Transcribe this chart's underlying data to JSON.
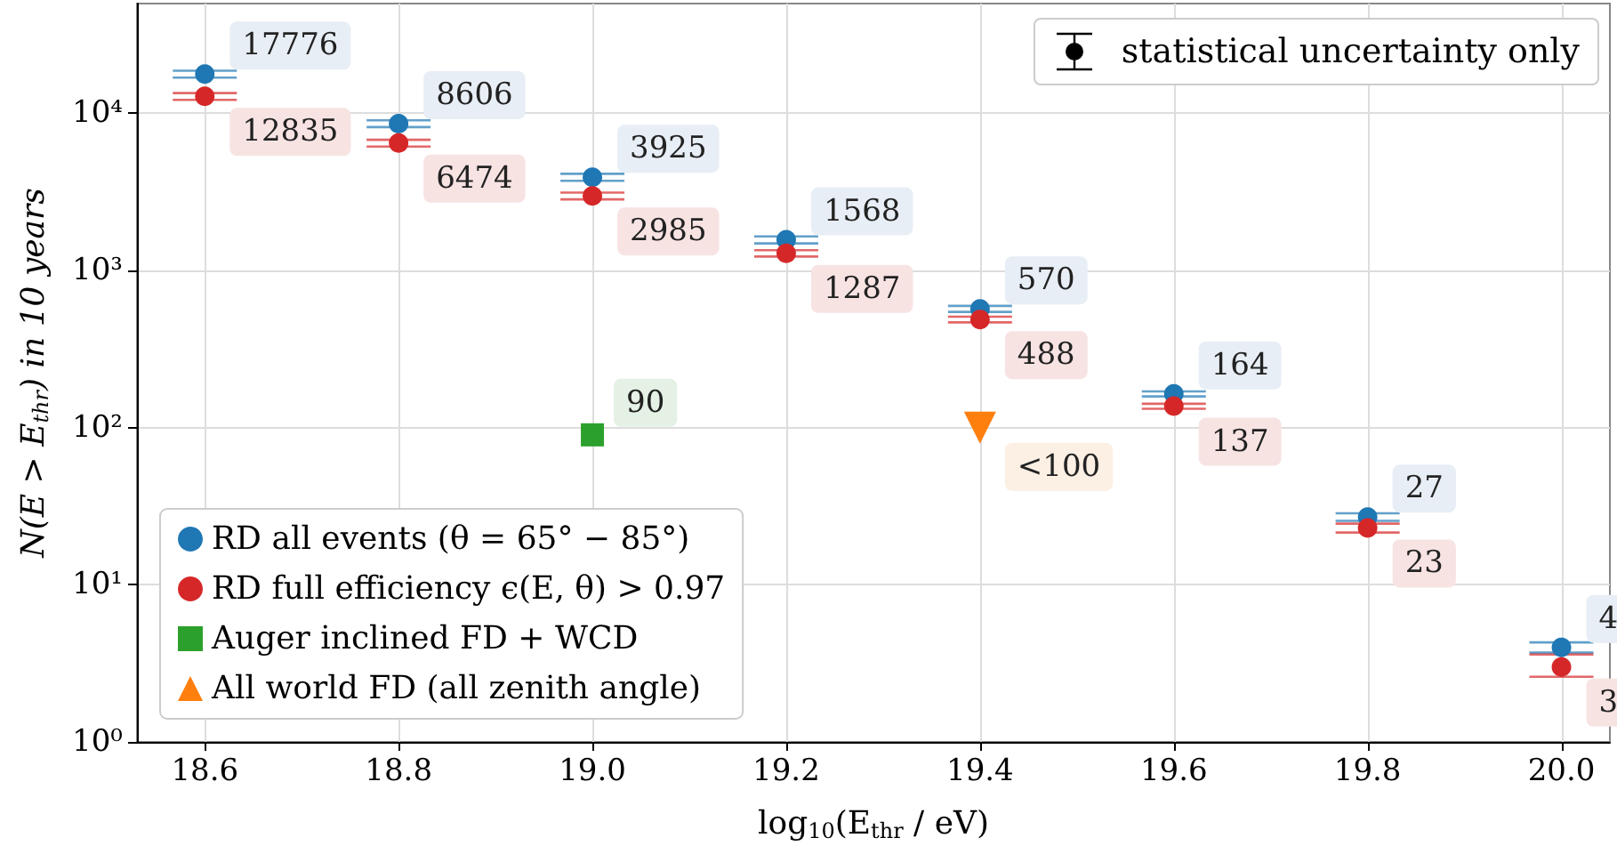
{
  "chart_data": {
    "type": "scatter",
    "xlabel": "log$_{10}$(E$_{thr}$ / eV)",
    "ylabel": "N(E > E$_{thr}$) in 10 years",
    "annotations": [
      "statistical uncertainty only"
    ],
    "xlim": [
      18.53,
      20.05
    ],
    "xticks": [
      {
        "value": 18.6,
        "label": "18.6"
      },
      {
        "value": 18.8,
        "label": "18.8"
      },
      {
        "value": 19.0,
        "label": "19.0"
      },
      {
        "value": 19.2,
        "label": "19.2"
      },
      {
        "value": 19.4,
        "label": "19.4"
      },
      {
        "value": 19.6,
        "label": "19.6"
      },
      {
        "value": 19.8,
        "label": "19.8"
      },
      {
        "value": 20.0,
        "label": "20.0"
      }
    ],
    "ylim": [
      1,
      50000
    ],
    "yticks": [
      {
        "value": 1,
        "label": "10⁰"
      },
      {
        "value": 10,
        "label": "10¹"
      },
      {
        "value": 100,
        "label": "10²"
      },
      {
        "value": 1000,
        "label": "10³"
      },
      {
        "value": 10000,
        "label": "10⁴"
      }
    ],
    "log": "y",
    "grid": true,
    "legend": "bottom left",
    "series": [
      {
        "name": "RD all events (θ = 65° − 85°)",
        "color": "#1f77b4",
        "marker": "circle",
        "x": [
          18.6,
          18.8,
          19.0,
          19.2,
          19.4,
          19.6,
          19.8,
          20.0
        ],
        "values": [
          17776,
          8606,
          3925,
          1568,
          570,
          164,
          27,
          4
        ],
        "errors": [
          900,
          430,
          200,
          80,
          25,
          6,
          1.5,
          0.3
        ],
        "value_labels": [
          "17776",
          "8606",
          "3925",
          "1568",
          "570",
          "164",
          "27",
          "4"
        ]
      },
      {
        "name": "RD full efficiency ϵ(E, θ) > 0.97",
        "color": "#d62728",
        "marker": "circle",
        "x": [
          18.6,
          18.8,
          19.0,
          19.2,
          19.4,
          19.6,
          19.8,
          20.0
        ],
        "values": [
          12835,
          6474,
          2985,
          1287,
          488,
          137,
          23,
          3
        ],
        "errors": [
          640,
          320,
          150,
          60,
          20,
          5,
          1.5,
          [
            2.6,
            3.6
          ]
        ],
        "value_labels": [
          "12835",
          "6474",
          "2985",
          "1287",
          "488",
          "137",
          "23",
          "3"
        ]
      },
      {
        "name": "Auger inclined FD + WCD",
        "color": "#2ca02c",
        "marker": "square",
        "x": [
          19.0
        ],
        "values": [
          90
        ],
        "value_labels": [
          "90"
        ]
      },
      {
        "name": "All world FD (all zenith angle)",
        "color": "#ff7f0e",
        "marker": "triangle",
        "x": [
          19.4
        ],
        "values": [
          100
        ],
        "value_labels": [
          "<100"
        ]
      }
    ]
  }
}
